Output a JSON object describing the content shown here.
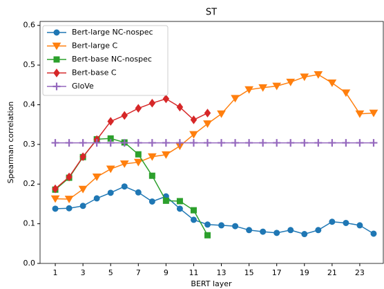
{
  "chart_data": {
    "type": "line",
    "title": "ST",
    "xlabel": "BERT layer",
    "ylabel": "Spearman correlation",
    "x": [
      1,
      2,
      3,
      4,
      5,
      6,
      7,
      8,
      9,
      10,
      11,
      12,
      13,
      14,
      15,
      16,
      17,
      18,
      19,
      20,
      21,
      22,
      23,
      24
    ],
    "xlim": [
      -0.1,
      24.7
    ],
    "xticks": [
      1,
      3,
      5,
      7,
      9,
      11,
      13,
      15,
      17,
      19,
      21,
      23
    ],
    "ylim": [
      0,
      0.61
    ],
    "yticks": [
      {
        "value": 0,
        "label": "0.0"
      },
      0.1,
      0.2,
      0.3,
      0.4,
      0.5,
      0.6
    ],
    "legend": "upper left",
    "series": [
      {
        "name": "Bert-large NC-nospec",
        "color": "#1f77b4",
        "marker": "circle",
        "values": [
          0.138,
          0.139,
          0.145,
          0.164,
          0.178,
          0.194,
          0.179,
          0.156,
          0.169,
          0.138,
          0.11,
          0.098,
          0.096,
          0.094,
          0.084,
          0.08,
          0.077,
          0.084,
          0.074,
          0.084,
          0.105,
          0.102,
          0.096,
          0.075
        ]
      },
      {
        "name": "Bert-large C",
        "color": "#ff7f0e",
        "marker": "triangle-down",
        "values": [
          0.163,
          0.162,
          0.187,
          0.218,
          0.238,
          0.251,
          0.255,
          0.269,
          0.274,
          0.296,
          0.325,
          0.352,
          0.377,
          0.416,
          0.438,
          0.443,
          0.447,
          0.457,
          0.47,
          0.476,
          0.455,
          0.43,
          0.377,
          0.379
        ]
      },
      {
        "name": "Bert-base NC-nospec",
        "color": "#2ca02c",
        "marker": "square",
        "values": [
          0.186,
          0.216,
          0.268,
          0.313,
          0.315,
          0.305,
          0.275,
          0.221,
          0.158,
          0.157,
          0.134,
          0.071,
          null,
          null,
          null,
          null,
          null,
          null,
          null,
          null,
          null,
          null,
          null,
          null
        ]
      },
      {
        "name": "Bert-base C",
        "color": "#d62728",
        "marker": "diamond",
        "values": [
          0.188,
          0.218,
          0.269,
          0.312,
          0.358,
          0.373,
          0.391,
          0.404,
          0.415,
          0.394,
          0.362,
          0.379,
          null,
          null,
          null,
          null,
          null,
          null,
          null,
          null,
          null,
          null,
          null,
          null
        ]
      },
      {
        "name": "GloVe",
        "color": "#9467bd",
        "marker": "plus",
        "values": [
          0.304,
          0.304,
          0.304,
          0.304,
          0.304,
          0.304,
          0.304,
          0.304,
          0.304,
          0.304,
          0.304,
          0.304,
          0.304,
          0.304,
          0.304,
          0.304,
          0.304,
          0.304,
          0.304,
          0.304,
          0.304,
          0.304,
          0.304,
          0.304
        ]
      }
    ]
  }
}
